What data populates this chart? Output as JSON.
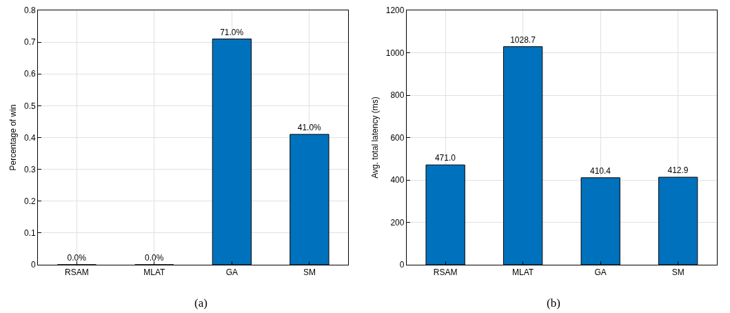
{
  "chart_data": [
    {
      "type": "bar",
      "ylabel": "Percentage of win",
      "categories": [
        "RSAM",
        "MLAT",
        "GA",
        "SM"
      ],
      "values": [
        0,
        0,
        0.71,
        0.41
      ],
      "value_labels": [
        "0.0%",
        "0.0%",
        "71.0%",
        "41.0%"
      ],
      "color": "#0072bd",
      "ylim": [
        0,
        0.8
      ],
      "yticks": [
        0,
        0.1,
        0.2,
        0.3,
        0.4,
        0.5,
        0.6,
        0.7,
        0.8
      ],
      "grid": true,
      "annotations": [
        "(a)"
      ]
    },
    {
      "type": "bar",
      "ylabel": "Avg. total latency (ms)",
      "categories": [
        "RSAM",
        "MLAT",
        "GA",
        "SM"
      ],
      "values": [
        471.0,
        1028.7,
        410.4,
        412.9
      ],
      "value_labels": [
        "471.0",
        "1028.7",
        "410.4",
        "412.9"
      ],
      "color": "#0072bd",
      "ylim": [
        0,
        1200
      ],
      "yticks": [
        0,
        200,
        400,
        600,
        800,
        1000,
        1200
      ],
      "grid": true,
      "annotations": [
        "(b)"
      ]
    }
  ]
}
